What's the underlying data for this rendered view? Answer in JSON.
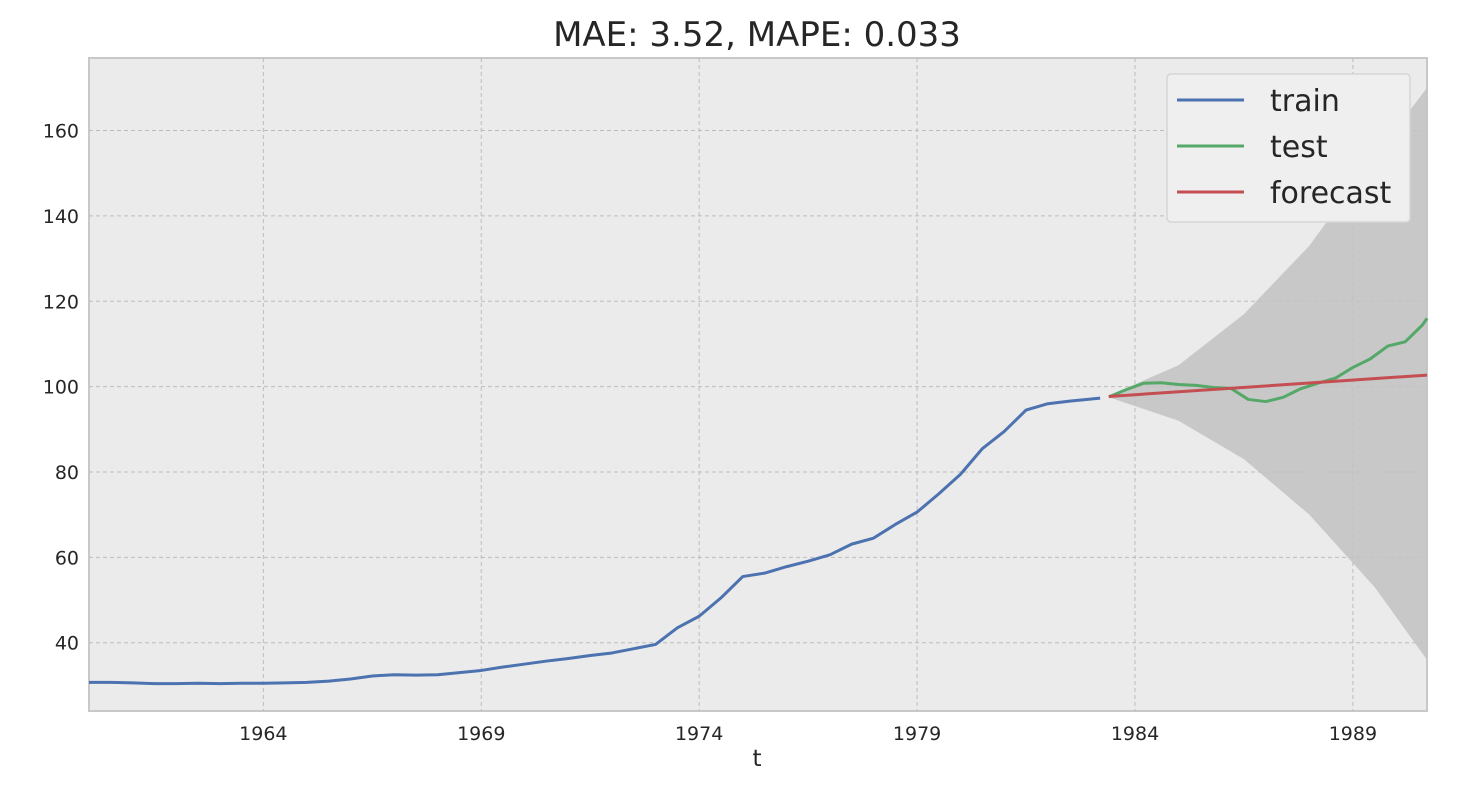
{
  "chart_data": {
    "type": "line",
    "title": "MAE: 3.52, MAPE: 0.033",
    "xlabel": "t",
    "ylabel": "",
    "xlim": [
      1960.0,
      1990.7
    ],
    "ylim": [
      24,
      177
    ],
    "x_ticks": [
      1964,
      1969,
      1974,
      1979,
      1984,
      1989
    ],
    "x_tick_labels": [
      "1964",
      "1969",
      "1974",
      "1979",
      "1984",
      "1989"
    ],
    "y_ticks": [
      40,
      60,
      80,
      100,
      120,
      140,
      160
    ],
    "y_tick_labels": [
      "40",
      "60",
      "80",
      "100",
      "120",
      "140",
      "160"
    ],
    "grid": true,
    "legend_placement": "top-right",
    "series": [
      {
        "name": "train",
        "color": "#4c72b0",
        "points": [
          [
            1960.0,
            30.7
          ],
          [
            1960.5,
            30.7
          ],
          [
            1961.0,
            30.6
          ],
          [
            1961.5,
            30.4
          ],
          [
            1962.0,
            30.4
          ],
          [
            1962.5,
            30.5
          ],
          [
            1963.0,
            30.4
          ],
          [
            1963.5,
            30.5
          ],
          [
            1964.0,
            30.5
          ],
          [
            1964.5,
            30.6
          ],
          [
            1965.0,
            30.7
          ],
          [
            1965.5,
            31.0
          ],
          [
            1966.0,
            31.5
          ],
          [
            1966.5,
            32.2
          ],
          [
            1967.0,
            32.5
          ],
          [
            1967.5,
            32.4
          ],
          [
            1968.0,
            32.5
          ],
          [
            1968.5,
            33.0
          ],
          [
            1969.0,
            33.5
          ],
          [
            1969.5,
            34.3
          ],
          [
            1970.0,
            35.0
          ],
          [
            1970.5,
            35.7
          ],
          [
            1971.0,
            36.3
          ],
          [
            1971.5,
            37.0
          ],
          [
            1972.0,
            37.6
          ],
          [
            1972.5,
            38.6
          ],
          [
            1973.0,
            39.6
          ],
          [
            1973.5,
            43.5
          ],
          [
            1974.0,
            46.2
          ],
          [
            1974.5,
            50.5
          ],
          [
            1975.0,
            55.5
          ],
          [
            1975.5,
            56.3
          ],
          [
            1976.0,
            57.8
          ],
          [
            1976.5,
            59.1
          ],
          [
            1977.0,
            60.6
          ],
          [
            1977.5,
            63.1
          ],
          [
            1978.0,
            64.5
          ],
          [
            1978.5,
            67.7
          ],
          [
            1979.0,
            70.6
          ],
          [
            1979.5,
            74.9
          ],
          [
            1980.0,
            79.5
          ],
          [
            1980.5,
            85.5
          ],
          [
            1981.0,
            89.5
          ],
          [
            1981.5,
            94.5
          ],
          [
            1982.0,
            96.0
          ],
          [
            1982.5,
            96.6
          ],
          [
            1983.0,
            97.1
          ],
          [
            1983.2,
            97.3
          ]
        ]
      },
      {
        "name": "test",
        "color": "#55a868",
        "points": [
          [
            1983.4,
            97.6
          ],
          [
            1983.8,
            99.3
          ],
          [
            1984.2,
            100.8
          ],
          [
            1984.6,
            100.9
          ],
          [
            1985.0,
            100.5
          ],
          [
            1985.4,
            100.3
          ],
          [
            1985.8,
            99.8
          ],
          [
            1986.2,
            99.6
          ],
          [
            1986.6,
            97.0
          ],
          [
            1987.0,
            96.5
          ],
          [
            1987.4,
            97.5
          ],
          [
            1987.8,
            99.5
          ],
          [
            1988.2,
            100.8
          ],
          [
            1988.6,
            102.0
          ],
          [
            1989.0,
            104.5
          ],
          [
            1989.4,
            106.5
          ],
          [
            1989.8,
            109.5
          ],
          [
            1990.2,
            110.5
          ],
          [
            1990.6,
            114.5
          ],
          [
            1990.7,
            116.0
          ]
        ]
      },
      {
        "name": "forecast",
        "color": "#c44e52",
        "points": [
          [
            1983.4,
            97.7
          ],
          [
            1990.7,
            102.7
          ]
        ]
      }
    ],
    "confidence_band": {
      "color": "#c2c2c2",
      "x": [
        1983.4,
        1985.0,
        1986.5,
        1988.0,
        1989.5,
        1990.7
      ],
      "lower": [
        97.5,
        92.0,
        83.0,
        70.0,
        53.0,
        36.0
      ],
      "upper": [
        97.9,
        105.0,
        117.0,
        133.0,
        154.0,
        170.0
      ]
    }
  }
}
